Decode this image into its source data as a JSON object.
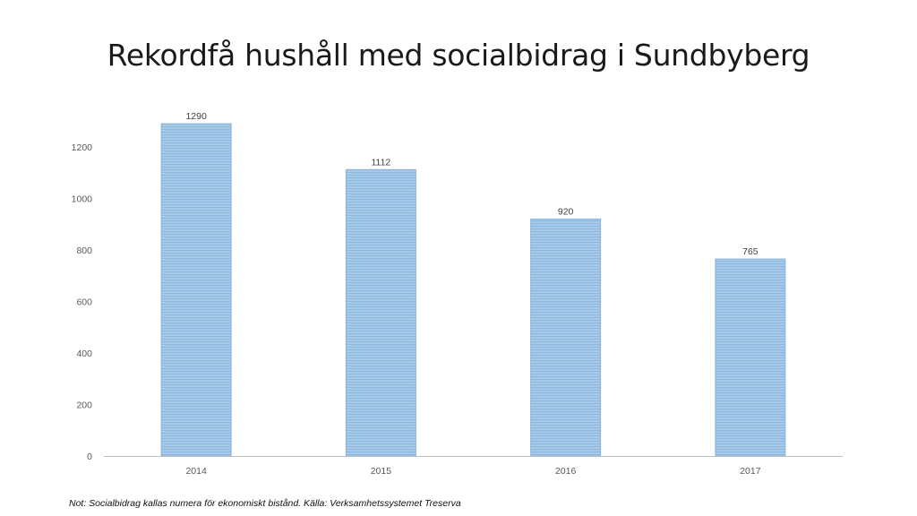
{
  "chart_data": {
    "type": "bar",
    "title": "Rekordfå hushåll med socialbidrag i Sundbyberg",
    "categories": [
      "2014",
      "2015",
      "2016",
      "2017"
    ],
    "values": [
      1290,
      1112,
      920,
      765
    ],
    "data_labels": [
      "1290",
      "1112",
      "920",
      "765"
    ],
    "y_ticks": [
      "0",
      "200",
      "400",
      "600",
      "800",
      "1000",
      "1200"
    ],
    "ylim": [
      0,
      1200
    ],
    "grid": false,
    "legend": "none",
    "bar_color": "#9DC3E6",
    "bar_stripe_color": "#B4D2EE",
    "bar_edge_color": "#8AB4DB"
  },
  "footnote": "Not: Socialbidrag kallas numera för ekonomiskt bistånd. Källa: Verksamhetssystemet Treserva"
}
